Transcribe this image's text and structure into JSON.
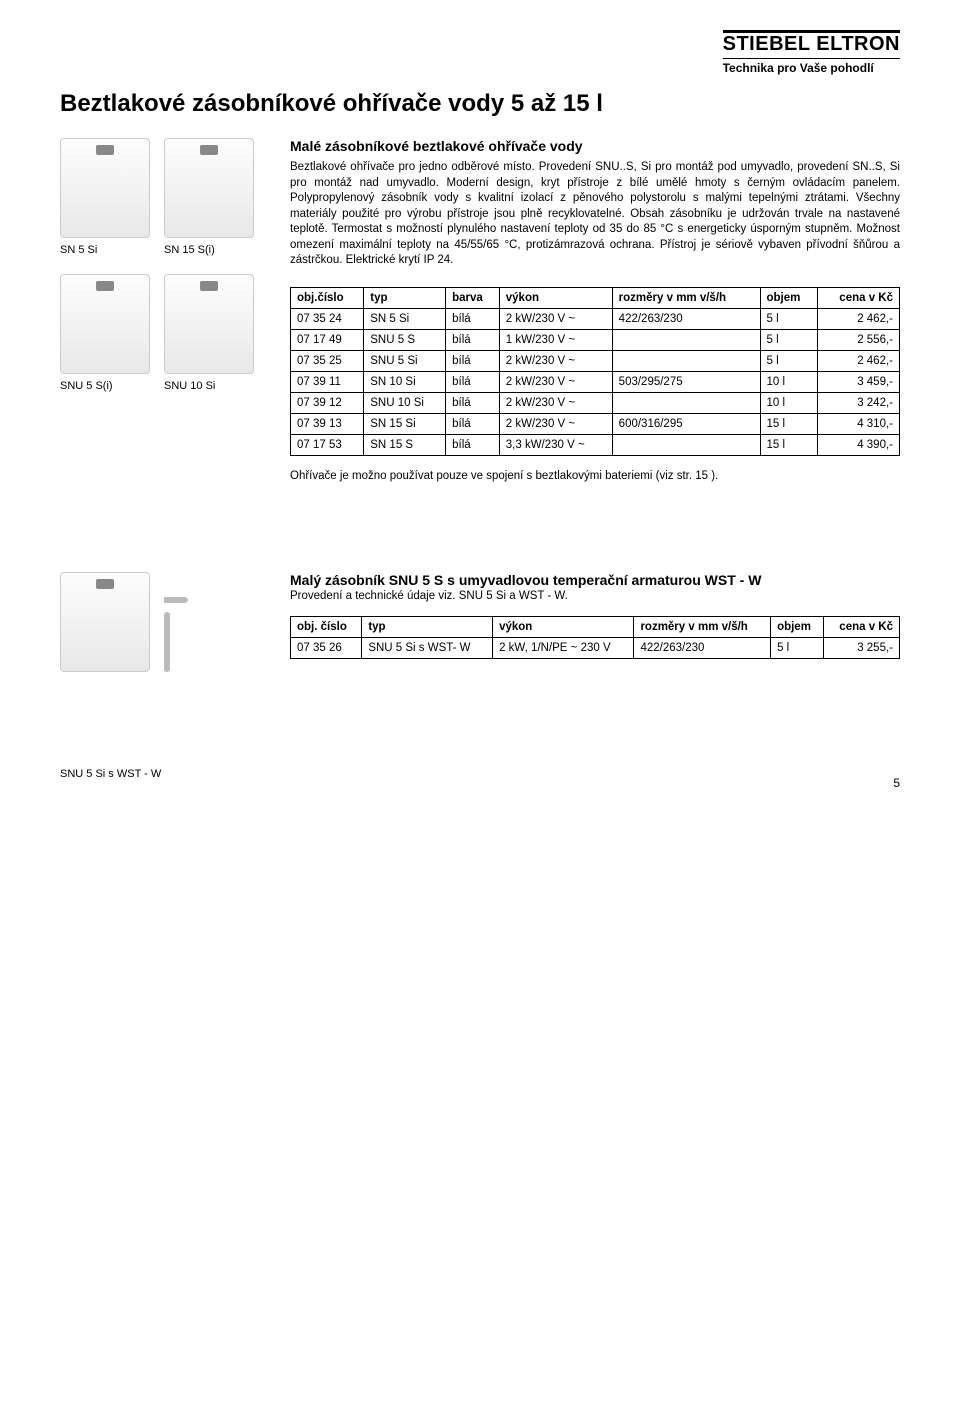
{
  "brand": {
    "name": "STIEBEL ELTRON",
    "tagline": "Technika pro Vaše pohodlí"
  },
  "page_title": "Beztlakové zásobníkové ohřívače vody 5 až 15 l",
  "section1": {
    "title": "Malé zásobníkové beztlakové ohřívače vody",
    "body": "Beztlakové ohřívače pro jedno odběrové místo. Provedení SNU..S, Si pro montáž pod umyvadlo, provedení SN..S, Si pro montáž nad umyvadlo. Moderní design, kryt přístroje z bílé umělé hmoty s černým ovládacím panelem. Polypropylenový zásobník vody s kvalitní izolací z pěnového polystorolu s malými tepelnými ztrátami. Všechny materiály použité pro výrobu přístroje jsou plně recyklovatelné. Obsah zásobníku je udržován trvale na nastavené teplotě. Termostat s možností plynulého nastavení teploty od 35 do 85 °C s energeticky úsporným stupněm. Možnost omezení maximální teploty na 45/55/65 °C, protizámrazová ochrana. Přístroj je sériově vybaven přívodní šňůrou a zástrčkou. Elektrické krytí IP 24.",
    "captions": {
      "c1": "SN 5 Si",
      "c2": "SN 15 S(i)",
      "c3": "SNU 5 S(i)",
      "c4": "SNU 10 Si"
    },
    "table": {
      "headers": {
        "h1": "obj.číslo",
        "h2": "typ",
        "h3": "barva",
        "h4": "výkon",
        "h5": "rozměry v mm v/š/h",
        "h6": "objem",
        "h7": "cena v Kč"
      },
      "rows": [
        {
          "c1": "07 35 24",
          "c2": "SN 5 Si",
          "c3": "bílá",
          "c4": "2 kW/230 V ~",
          "c5": "422/263/230",
          "c6": "5 l",
          "c7": "2 462,-"
        },
        {
          "c1": "07 17 49",
          "c2": "SNU 5 S",
          "c3": "bílá",
          "c4": "1 kW/230 V ~",
          "c5": "",
          "c6": "5 l",
          "c7": "2 556,-"
        },
        {
          "c1": "07 35 25",
          "c2": "SNU 5 Si",
          "c3": "bílá",
          "c4": "2 kW/230 V ~",
          "c5": "",
          "c6": "5 l",
          "c7": "2 462,-"
        },
        {
          "c1": "07 39 11",
          "c2": "SN 10 Si",
          "c3": "bílá",
          "c4": "2 kW/230 V ~",
          "c5": "503/295/275",
          "c6": "10 l",
          "c7": "3 459,-"
        },
        {
          "c1": "07 39 12",
          "c2": "SNU 10 Si",
          "c3": "bílá",
          "c4": "2 kW/230 V ~",
          "c5": "",
          "c6": "10 l",
          "c7": "3 242,-"
        },
        {
          "c1": "07 39 13",
          "c2": "SN 15 Si",
          "c3": "bílá",
          "c4": "2 kW/230 V ~",
          "c5": "600/316/295",
          "c6": "15 l",
          "c7": "4 310,-"
        },
        {
          "c1": "07 17 53",
          "c2": "SN 15 S",
          "c3": "bílá",
          "c4": "3,3 kW/230 V ~",
          "c5": "",
          "c6": "15 l",
          "c7": "4 390,-"
        }
      ]
    },
    "note": "Ohřívače je možno používat pouze ve spojení s beztlakovými bateriemi (viz str. 15 )."
  },
  "section2": {
    "title": "Malý zásobník SNU 5 S s  umyvadlovou temperační armaturou WST - W",
    "subtitle": "Provedení a technické údaje viz. SNU 5  Si a WST - W.",
    "caption": "SNU 5 Si s WST - W",
    "table": {
      "headers": {
        "h1": "obj. číslo",
        "h2": "typ",
        "h3": "výkon",
        "h4": "rozměry v mm v/š/h",
        "h5": "objem",
        "h6": "cena v Kč"
      },
      "rows": [
        {
          "c1": "07 35 26",
          "c2": "SNU 5 Si  s WST- W",
          "c3": "2 kW, 1/N/PE ~ 230 V",
          "c4": "422/263/230",
          "c5": "5 l",
          "c6": "3 255,-"
        }
      ]
    }
  },
  "page_number": "5"
}
